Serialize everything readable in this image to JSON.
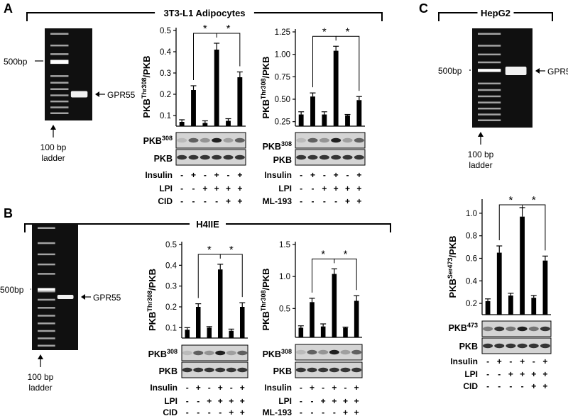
{
  "figure": {
    "panel_labels": [
      "A",
      "B",
      "C"
    ],
    "group_titles": [
      "3T3-L1 Adipocytes",
      "H4IIE",
      "HepG2"
    ],
    "gel": {
      "marker": "500bp",
      "band": "GPR55",
      "ladder_line1": "100 bp",
      "ladder_line2": "ladder"
    },
    "blot_labels": {
      "phospho308": "PKB",
      "phospho308_sup": "308",
      "phospho473": "PKB",
      "phospho473_sup": "473",
      "total": "PKB"
    },
    "treatment_labels": {
      "insulin": "Insulin",
      "lpi": "LPI",
      "cid": "CID",
      "ml193": "ML-193"
    },
    "treatments": {
      "insulin": [
        "-",
        "+",
        "-",
        "+",
        "-",
        "+"
      ],
      "lpi": [
        "-",
        "-",
        "+",
        "+",
        "+",
        "+"
      ],
      "inhib": [
        "-",
        "-",
        "-",
        "-",
        "+",
        "+"
      ]
    },
    "significance": "*",
    "colors": {
      "bar": "#000000",
      "gel_bg": "#101010",
      "band": "#f2f2f2",
      "blot_bg": "#d4d4d4"
    }
  },
  "chart_data": [
    {
      "type": "bar",
      "panel": "A",
      "inhibitor": "CID",
      "ylabel": "PKB",
      "ylabel_sup": "Thr308",
      "ylabel_suffix": "/PKB",
      "ylim": [
        0.05,
        0.5
      ],
      "yticks": [
        0.1,
        0.2,
        0.3,
        0.4,
        0.5
      ],
      "tick_labels": [
        "0.1",
        "0.2",
        "0.3",
        "0.4",
        "0.5"
      ],
      "values": [
        0.07,
        0.22,
        0.065,
        0.41,
        0.075,
        0.28
      ],
      "errors": [
        0.01,
        0.02,
        0.01,
        0.03,
        0.01,
        0.025
      ]
    },
    {
      "type": "bar",
      "panel": "A",
      "inhibitor": "ML-193",
      "ylabel": "PKB",
      "ylabel_sup": "Thr308",
      "ylabel_suffix": "/PKB",
      "ylim": [
        0.2,
        1.25
      ],
      "yticks": [
        0.25,
        0.5,
        0.75,
        1.0,
        1.25
      ],
      "tick_labels": [
        "0.25",
        "0.50",
        "0.75",
        "1.00",
        "1.25"
      ],
      "values": [
        0.33,
        0.53,
        0.33,
        1.04,
        0.32,
        0.49
      ],
      "errors": [
        0.03,
        0.04,
        0.03,
        0.05,
        0.01,
        0.04
      ]
    },
    {
      "type": "bar",
      "panel": "B",
      "inhibitor": "CID",
      "ylabel": "PKB",
      "ylabel_sup": "Thr308",
      "ylabel_suffix": "/PKB",
      "ylim": [
        0.05,
        0.5
      ],
      "yticks": [
        0.1,
        0.2,
        0.3,
        0.4,
        0.5
      ],
      "tick_labels": [
        "0.1",
        "0.2",
        "0.3",
        "0.4",
        "0.5"
      ],
      "values": [
        0.09,
        0.2,
        0.1,
        0.38,
        0.085,
        0.2
      ],
      "errors": [
        0.01,
        0.015,
        0.005,
        0.025,
        0.008,
        0.02
      ]
    },
    {
      "type": "bar",
      "panel": "B",
      "inhibitor": "ML-193",
      "ylabel": "PKB",
      "ylabel_sup": "Thr308",
      "ylabel_suffix": "/PKB",
      "ylim": [
        0.05,
        1.5
      ],
      "yticks": [
        0.5,
        1.0,
        1.5
      ],
      "tick_labels": [
        "0.5",
        "1.0",
        "1.5"
      ],
      "values": [
        0.2,
        0.6,
        0.22,
        1.04,
        0.2,
        0.62
      ],
      "errors": [
        0.03,
        0.06,
        0.04,
        0.08,
        0.01,
        0.08
      ]
    },
    {
      "type": "bar",
      "panel": "C",
      "inhibitor": "CID",
      "ylabel": "PKB",
      "ylabel_sup": "Ser473",
      "ylabel_suffix": "/PKB",
      "ylim": [
        0.1,
        1.1
      ],
      "yticks": [
        0.2,
        0.4,
        0.6,
        0.8,
        1.0
      ],
      "tick_labels": [
        "0.2",
        "0.4",
        "0.6",
        "0.8",
        "1.0"
      ],
      "values": [
        0.22,
        0.65,
        0.27,
        0.97,
        0.25,
        0.58
      ],
      "errors": [
        0.02,
        0.06,
        0.02,
        0.08,
        0.02,
        0.04
      ]
    }
  ]
}
